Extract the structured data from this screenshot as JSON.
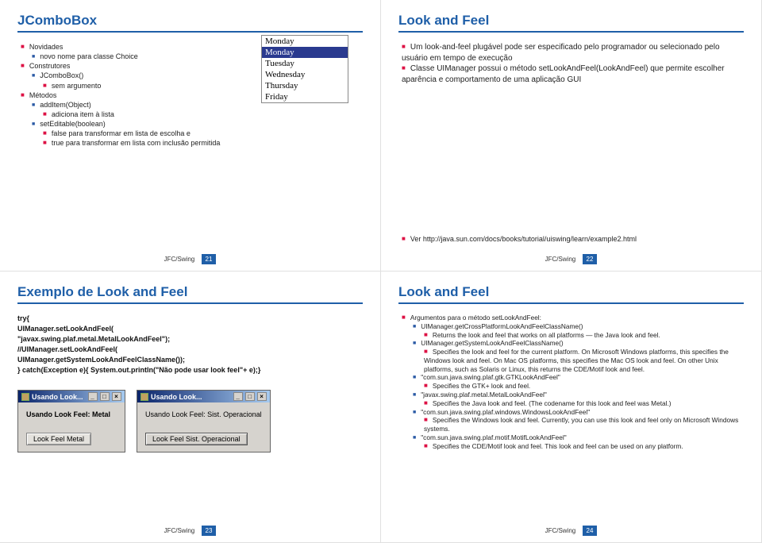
{
  "colors": {
    "title": "#1f5fa8",
    "bullet_red": "#dd1144",
    "bullet_blue": "#2a5aa5",
    "pagenum_bg": "#1f5fa8"
  },
  "footer_label": "JFC/Swing",
  "slide1": {
    "title": "JComboBox",
    "items": [
      {
        "l": 1,
        "c": "red",
        "t": "Novidades"
      },
      {
        "l": 2,
        "c": "blue",
        "t": "novo nome para classe Choice"
      },
      {
        "l": 1,
        "c": "red",
        "t": "Construtores"
      },
      {
        "l": 2,
        "c": "blue",
        "t": "JComboBox()"
      },
      {
        "l": 3,
        "c": "red",
        "t": "sem argumento"
      },
      {
        "l": 1,
        "c": "red",
        "t": "Métodos"
      },
      {
        "l": 2,
        "c": "blue",
        "t": "addItem(Object)"
      },
      {
        "l": 3,
        "c": "red",
        "t": "adiciona item à lista"
      },
      {
        "l": 2,
        "c": "blue",
        "t": "setEditable(boolean)"
      },
      {
        "l": 3,
        "c": "red",
        "t": "false para transformar em lista de escolha e"
      },
      {
        "l": 3,
        "c": "red",
        "t": "true para transformar em lista com inclusão permitida"
      }
    ],
    "combo": {
      "items": [
        "Monday",
        "Monday",
        "Tuesday",
        "Wednesday",
        "Thursday",
        "Friday"
      ],
      "selected_index": 1
    },
    "page": "21"
  },
  "slide2": {
    "title": "Look and Feel",
    "items": [
      {
        "l": 1,
        "c": "red",
        "t": "Um look-and-feel plugável pode ser especificado pelo programador ou selecionado pelo usuário em tempo de execução"
      },
      {
        "l": 1,
        "c": "red",
        "t": "Classe UIManager possui o método setLookAndFeel(LookAndFeel) que permite escolher aparência e comportamento de uma aplicação GUI"
      }
    ],
    "ref": {
      "l": 1,
      "c": "red",
      "t": "Ver http://java.sun.com/docs/books/tutorial/uiswing/learn/example2.html"
    },
    "page": "22"
  },
  "slide3": {
    "title": "Exemplo de Look and Feel",
    "code_lines": [
      "try{",
      "    UIManager.setLookAndFeel(",
      "            \"javax.swing.plaf.metal.MetalLookAndFeel\");",
      "    //UIManager.setLookAndFeel(",
      "            UIManager.getSystemLookAndFeelClassName());",
      "} catch(Exception e){ System.out.println(\"Não pode usar look feel\"+ e);}"
    ],
    "win1": {
      "title": "Usando Look...",
      "label": "Usando Look Feel: Metal",
      "button": "Look Feel Metal"
    },
    "win2": {
      "title": "Usando Look...",
      "label": "Usando Look Feel: Sist. Operacional",
      "button": "Look Feel Sist. Operacional"
    },
    "page": "23"
  },
  "slide4": {
    "title": "Look and Feel",
    "items": [
      {
        "l": 1,
        "c": "red",
        "t": "Argumentos para o método setLookAndFeel:"
      },
      {
        "l": 2,
        "c": "blue",
        "t": "UIManager.getCrossPlatformLookAndFeelClassName()"
      },
      {
        "l": 3,
        "c": "red",
        "t": "Returns the look and feel that works on all platforms — the Java look and feel."
      },
      {
        "l": 2,
        "c": "blue",
        "t": "UIManager.getSystemLookAndFeelClassName()"
      },
      {
        "l": 3,
        "c": "red",
        "t": "Specifies the look and feel for the current platform. On Microsoft Windows platforms, this specifies the Windows look and feel. On Mac OS platforms, this specifies the Mac OS look and feel. On other Unix platforms, such as Solaris or Linux, this returns the CDE/Motif look and feel."
      },
      {
        "l": 2,
        "c": "blue",
        "t": "\"com.sun.java.swing.plaf.gtk.GTKLookAndFeel\""
      },
      {
        "l": 3,
        "c": "red",
        "t": "Specifies the GTK+ look and feel."
      },
      {
        "l": 2,
        "c": "blue",
        "t": "\"javax.swing.plaf.metal.MetalLookAndFeel\""
      },
      {
        "l": 3,
        "c": "red",
        "t": "Specifies the Java look and feel. (The codename for this look and feel was Metal.)"
      },
      {
        "l": 2,
        "c": "blue",
        "t": "\"com.sun.java.swing.plaf.windows.WindowsLookAndFeel\""
      },
      {
        "l": 3,
        "c": "red",
        "t": "Specifies the Windows look and feel. Currently, you can use this look and feel only on Microsoft Windows systems."
      },
      {
        "l": 2,
        "c": "blue",
        "t": "\"com.sun.java.swing.plaf.motif.MotifLookAndFeel\""
      },
      {
        "l": 3,
        "c": "red",
        "t": "Specifies the CDE/Motif look and feel. This look and feel can be used on any platform."
      }
    ],
    "page": "24"
  }
}
